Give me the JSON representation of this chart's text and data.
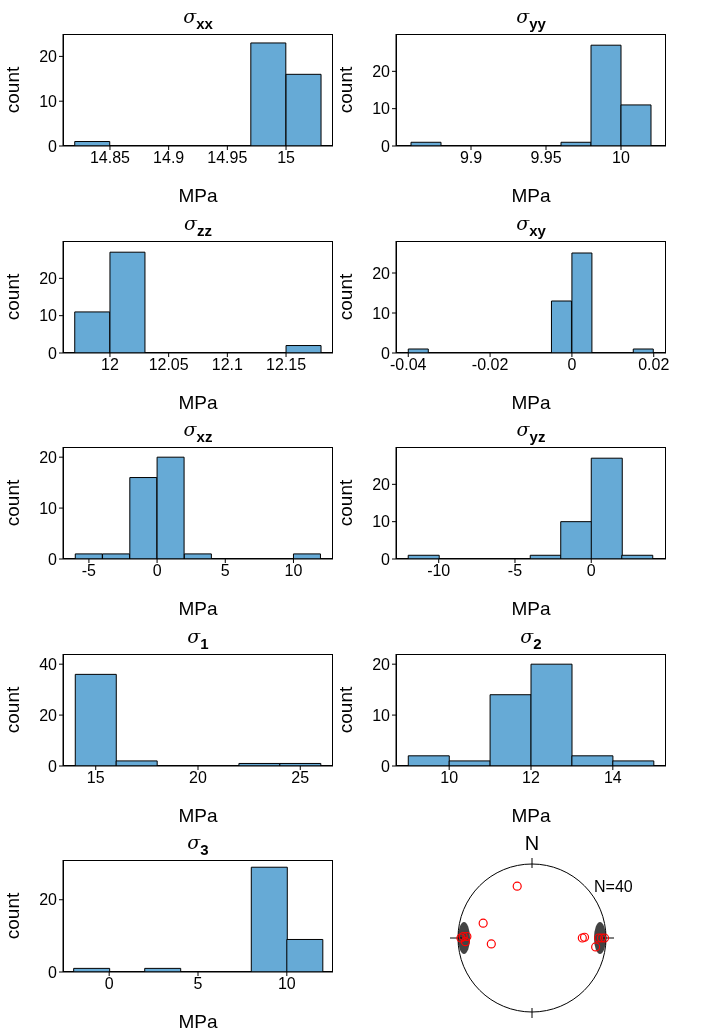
{
  "chart_data": [
    {
      "type": "histogram",
      "title": "σ$_{xx}$",
      "xlabel": "MPa",
      "ylabel": "count",
      "bins": [
        14.82,
        14.85,
        14.88,
        14.91,
        14.94,
        14.97,
        15,
        15.03
      ],
      "values": [
        1,
        0,
        0,
        0,
        0,
        23,
        16
      ],
      "color": "#66aad6",
      "xlim": [
        14.81,
        15.04
      ],
      "xticks": [
        14.85,
        14.9,
        14.95,
        15
      ],
      "ylim": [
        0,
        25
      ],
      "yticks": [
        0,
        10,
        20
      ]
    },
    {
      "type": "histogram",
      "title": "σ$_{yy}$",
      "xlabel": "MPa",
      "ylabel": "count",
      "bins": [
        9.86,
        9.88,
        9.9,
        9.92,
        9.94,
        9.96,
        9.98,
        10,
        10.02
      ],
      "values": [
        1,
        0,
        0,
        0,
        0,
        1,
        27,
        11
      ],
      "color": "#66aad6",
      "xlim": [
        9.85,
        10.03
      ],
      "xticks": [
        9.9,
        9.95,
        10
      ],
      "ylim": [
        0,
        30
      ],
      "yticks": [
        0,
        10,
        20
      ]
    },
    {
      "type": "histogram",
      "title": "σ$_{zz}$",
      "xlabel": "MPa",
      "ylabel": "count",
      "bins": [
        11.97,
        12,
        12.03,
        12.06,
        12.09,
        12.12,
        12.15,
        12.18
      ],
      "values": [
        11,
        27,
        0,
        0,
        0,
        0,
        2
      ],
      "color": "#66aad6",
      "xlim": [
        11.96,
        12.19
      ],
      "xticks": [
        12,
        12.05,
        12.1,
        12.15
      ],
      "ylim": [
        0,
        30
      ],
      "yticks": [
        0,
        10,
        20
      ]
    },
    {
      "type": "histogram",
      "title": "σ$_{xy}$",
      "xlabel": "MPa",
      "ylabel": "count",
      "bins": [
        -0.04,
        -0.035,
        -0.03,
        -0.025,
        -0.02,
        -0.015,
        -0.01,
        -0.005,
        0,
        0.005,
        0.01,
        0.015,
        0.02
      ],
      "values": [
        1,
        0,
        0,
        0,
        0,
        0,
        0,
        13,
        25,
        0,
        0,
        1
      ],
      "color": "#66aad6",
      "xlim": [
        -0.043,
        0.023
      ],
      "xticks": [
        -0.04,
        -0.02,
        0,
        0.02
      ],
      "ylim": [
        0,
        28
      ],
      "yticks": [
        0,
        10,
        20
      ]
    },
    {
      "type": "histogram",
      "title": "σ$_{xz}$",
      "xlabel": "MPa",
      "ylabel": "count",
      "bins": [
        -6,
        -4,
        -2,
        0,
        2,
        4,
        6,
        8,
        10,
        12
      ],
      "values": [
        1,
        1,
        16,
        20,
        1,
        0,
        0,
        0,
        1
      ],
      "color": "#66aad6",
      "xlim": [
        -6.9,
        12.9
      ],
      "xticks": [
        -5,
        0,
        5,
        10
      ],
      "ylim": [
        0,
        22
      ],
      "yticks": [
        0,
        10,
        20
      ]
    },
    {
      "type": "histogram",
      "title": "σ$_{yz}$",
      "xlabel": "MPa",
      "ylabel": "count",
      "bins": [
        -12,
        -10,
        -8,
        -6,
        -4,
        -2,
        0,
        2,
        4
      ],
      "values": [
        1,
        0,
        0,
        0,
        1,
        10,
        27,
        1
      ],
      "color": "#66aad6",
      "xlim": [
        -12.8,
        4.9
      ],
      "xticks": [
        -10,
        -5,
        0
      ],
      "ylim": [
        0,
        30
      ],
      "yticks": [
        0,
        10,
        20
      ]
    },
    {
      "type": "histogram",
      "title": "σ$_{1}$",
      "xlabel": "MPa",
      "ylabel": "count",
      "bins": [
        14,
        16,
        18,
        20,
        22,
        24,
        26
      ],
      "values": [
        36,
        2,
        0,
        0,
        1,
        1
      ],
      "color": "#66aad6",
      "xlim": [
        13.4,
        26.6
      ],
      "xticks": [
        15,
        20,
        25
      ],
      "ylim": [
        0,
        44
      ],
      "yticks": [
        0,
        20,
        40
      ]
    },
    {
      "type": "histogram",
      "title": "σ$_{2}$",
      "xlabel": "MPa",
      "ylabel": "count",
      "bins": [
        9,
        10,
        11,
        12,
        13,
        14,
        15
      ],
      "values": [
        2,
        1,
        14,
        20,
        2,
        1
      ],
      "color": "#66aad6",
      "xlim": [
        8.7,
        15.3
      ],
      "xticks": [
        10,
        12,
        14
      ],
      "ylim": [
        0,
        22
      ],
      "yticks": [
        0,
        10,
        20
      ]
    },
    {
      "type": "histogram",
      "title": "σ$_{3}$",
      "xlabel": "MPa",
      "ylabel": "count",
      "bins": [
        -2,
        0,
        2,
        4,
        6,
        8,
        10,
        12
      ],
      "values": [
        1,
        0,
        1,
        0,
        0,
        29,
        9
      ],
      "color": "#66aad6",
      "xlim": [
        -2.6,
        12.6
      ],
      "xticks": [
        0,
        5,
        10
      ],
      "ylim": [
        0,
        31
      ],
      "yticks": [
        0,
        20
      ]
    },
    {
      "type": "other",
      "title": "N",
      "annotations": [
        "N=40"
      ]
    }
  ]
}
